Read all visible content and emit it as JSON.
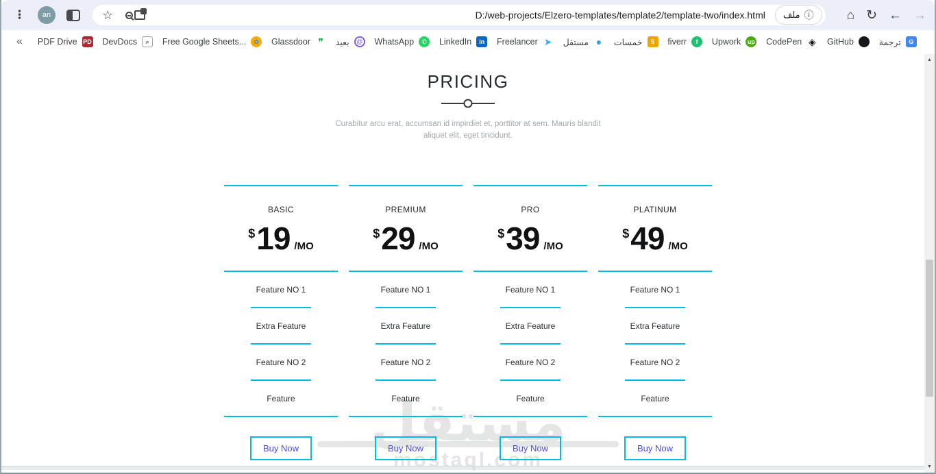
{
  "browser": {
    "toolbar": {
      "avatar_label": "an",
      "url": "D:/web-projects/Elzero-templates/template2/template-two/index.html",
      "file_chip_label": "ملف"
    },
    "icons": {
      "menu": "⋮",
      "star": "☆",
      "info": "ⓘ",
      "home": "⌂",
      "reload": "↻",
      "back": "←",
      "forward": "→",
      "overflow": "«",
      "scroll_up": "▲",
      "scroll_down": "▼"
    },
    "bookmarks": [
      {
        "label": "PDF Drive",
        "icon": "pdf-drive-icon",
        "glyph": "PD",
        "bg": "#b3282d",
        "fg": "#ffffff",
        "shape": "square"
      },
      {
        "label": "DevDocs",
        "icon": "devdocs-icon",
        "glyph": "⌕",
        "bg": "#ffffff",
        "fg": "#5f6368",
        "shape": "outline"
      },
      {
        "label": "Free Google Sheets...",
        "icon": "sheets-icon",
        "glyph": "✿",
        "bg": "#f9ab00",
        "fg": "#4285f4",
        "shape": "circle"
      },
      {
        "label": "Glassdoor",
        "icon": "glassdoor-icon",
        "glyph": "❞",
        "bg": "transparent",
        "fg": "#0caa41",
        "shape": "plain"
      },
      {
        "label": "بعيد",
        "icon": "baaeed-icon",
        "glyph": "@",
        "bg": "#ffffff",
        "fg": "#7b5cf0",
        "shape": "outline-circle"
      },
      {
        "label": "WhatsApp",
        "icon": "whatsapp-icon",
        "glyph": "✆",
        "bg": "#25d366",
        "fg": "#ffffff",
        "shape": "circle"
      },
      {
        "label": "LinkedIn",
        "icon": "linkedin-icon",
        "glyph": "in",
        "bg": "#0a66c2",
        "fg": "#ffffff",
        "shape": "square"
      },
      {
        "label": "Freelancer",
        "icon": "freelancer-icon",
        "glyph": "➤",
        "bg": "transparent",
        "fg": "#29b2fe",
        "shape": "plain"
      },
      {
        "label": "مستقل",
        "icon": "mostaql-icon",
        "glyph": "●",
        "bg": "transparent",
        "fg": "#29abe2",
        "shape": "plain"
      },
      {
        "label": "خمسات",
        "icon": "khamsat-icon",
        "glyph": "5",
        "bg": "#f0a400",
        "fg": "#ffffff",
        "shape": "square"
      },
      {
        "label": "fiverr",
        "icon": "fiverr-icon",
        "glyph": "f",
        "bg": "#1dbf73",
        "fg": "#ffffff",
        "shape": "circle"
      },
      {
        "label": "Upwork",
        "icon": "upwork-icon",
        "glyph": "up",
        "bg": "#4aa814",
        "fg": "#ffffff",
        "shape": "circle"
      },
      {
        "label": "CodePen",
        "icon": "codepen-icon",
        "glyph": "◈",
        "bg": "transparent",
        "fg": "#111111",
        "shape": "plain"
      },
      {
        "label": "GitHub",
        "icon": "github-icon",
        "glyph": "",
        "bg": "#15171a",
        "fg": "#ffffff",
        "shape": "circle"
      },
      {
        "label": "ترجمة",
        "icon": "translate-icon",
        "glyph": "G",
        "bg": "#4285f4",
        "fg": "#ffffff",
        "shape": "square"
      }
    ]
  },
  "page": {
    "title": "PRICING",
    "subtitle": "Curabitur arcu erat, accumsan id impirdiet et, porttitor at sem. Mauris blandit aliquet elit, eget tincidunt.",
    "accent_color": "#00bde0",
    "plans": [
      {
        "name": "BASIC",
        "currency": "$",
        "price": "19",
        "period": "/MO",
        "features": [
          "Feature NO 1",
          "Extra Feature",
          "Feature NO 2",
          "Feature"
        ],
        "button_label": "Buy Now"
      },
      {
        "name": "PREMIUM",
        "currency": "$",
        "price": "29",
        "period": "/MO",
        "features": [
          "Feature NO 1",
          "Extra Feature",
          "Feature NO 2",
          "Feature"
        ],
        "button_label": "Buy Now"
      },
      {
        "name": "PRO",
        "currency": "$",
        "price": "39",
        "period": "/MO",
        "features": [
          "Feature NO 1",
          "Extra Feature",
          "Feature NO 2",
          "Feature"
        ],
        "button_label": "Buy Now"
      },
      {
        "name": "PLATINUM",
        "currency": "$",
        "price": "49",
        "period": "/MO",
        "features": [
          "Feature NO 1",
          "Extra Feature",
          "Feature NO 2",
          "Feature"
        ],
        "button_label": "Buy Now"
      }
    ],
    "watermark": {
      "arabic": "مستقل",
      "domain": "mostaql.com"
    }
  }
}
